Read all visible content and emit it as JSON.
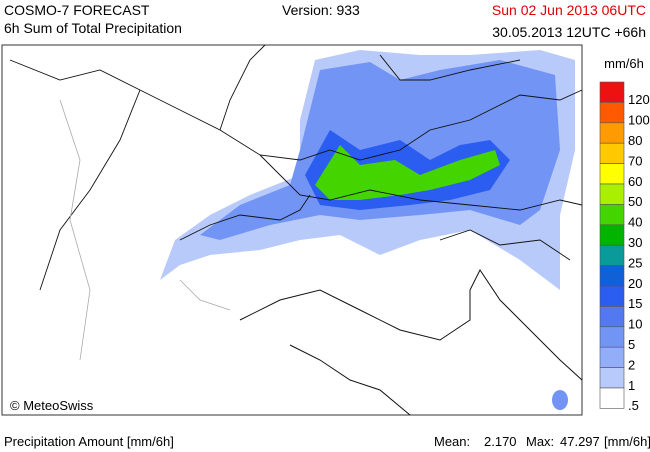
{
  "header": {
    "model": "COSMO-7 FORECAST",
    "product": "6h Sum of Total Precipitation",
    "version": "Version: 933",
    "valid_time": "Sun 02 Jun 2013 06UTC",
    "run_time": "30.05.2013 12UTC +66h"
  },
  "legend": {
    "title": "mm/6h",
    "labels": [
      "120",
      "100",
      "80",
      "70",
      "60",
      "50",
      "40",
      "30",
      "25",
      "20",
      "15",
      "10",
      "5",
      "2",
      "1",
      ".5"
    ],
    "colors": [
      "#ee1111",
      "#ff5a00",
      "#ff9a00",
      "#ffc800",
      "#ffff00",
      "#aaee00",
      "#44d400",
      "#00b400",
      "#0a9a9a",
      "#1060d8",
      "#2a5df0",
      "#5478f2",
      "#7294f4",
      "#92aef6",
      "#b8cafa",
      "#ffffff"
    ]
  },
  "map": {
    "copyright": "© MeteoSwiss"
  },
  "footer": {
    "quantity": "Precipitation Amount [mm/6h]",
    "mean_label": "Mean:",
    "mean": "2.170",
    "max_label": "Max:",
    "max": "47.297",
    "unit": "[mm/6h]"
  }
}
